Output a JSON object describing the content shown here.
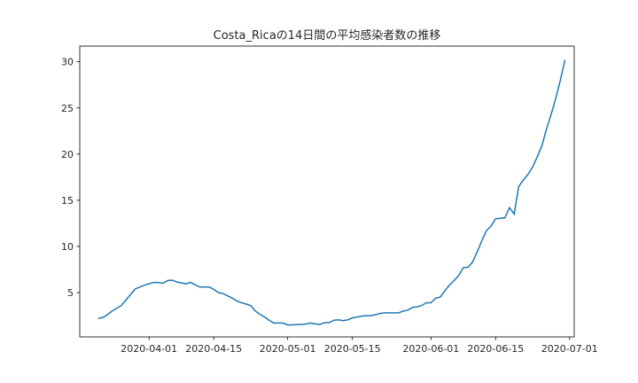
{
  "chart_data": {
    "type": "line",
    "title": "Costa_Ricaの14日間の平均感染者数の推移",
    "xlabel": "",
    "ylabel": "",
    "x_ticks": [
      "2020-04-01",
      "2020-04-15",
      "2020-05-01",
      "2020-05-15",
      "2020-06-01",
      "2020-06-15",
      "2020-07-01"
    ],
    "y_ticks": [
      5,
      10,
      15,
      20,
      25,
      30
    ],
    "xlim": [
      "2020-03-17",
      "2020-07-02"
    ],
    "ylim": [
      0.2,
      31.7
    ],
    "grid": false,
    "series": [
      {
        "color": "#1f77b4",
        "x": [
          "2020-03-21",
          "2020-03-22",
          "2020-03-23",
          "2020-03-24",
          "2020-03-25",
          "2020-03-26",
          "2020-03-27",
          "2020-03-28",
          "2020-03-29",
          "2020-03-30",
          "2020-03-31",
          "2020-04-01",
          "2020-04-02",
          "2020-04-03",
          "2020-04-04",
          "2020-04-05",
          "2020-04-06",
          "2020-04-07",
          "2020-04-08",
          "2020-04-09",
          "2020-04-10",
          "2020-04-11",
          "2020-04-12",
          "2020-04-13",
          "2020-04-14",
          "2020-04-15",
          "2020-04-16",
          "2020-04-17",
          "2020-04-18",
          "2020-04-19",
          "2020-04-20",
          "2020-04-21",
          "2020-04-22",
          "2020-04-23",
          "2020-04-24",
          "2020-04-25",
          "2020-04-26",
          "2020-04-27",
          "2020-04-28",
          "2020-04-29",
          "2020-04-30",
          "2020-05-01",
          "2020-05-02",
          "2020-05-03",
          "2020-05-04",
          "2020-05-05",
          "2020-05-06",
          "2020-05-07",
          "2020-05-08",
          "2020-05-09",
          "2020-05-10",
          "2020-05-11",
          "2020-05-12",
          "2020-05-13",
          "2020-05-14",
          "2020-05-15",
          "2020-05-16",
          "2020-05-17",
          "2020-05-18",
          "2020-05-19",
          "2020-05-20",
          "2020-05-21",
          "2020-05-22",
          "2020-05-23",
          "2020-05-24",
          "2020-05-25",
          "2020-05-26",
          "2020-05-27",
          "2020-05-28",
          "2020-05-29",
          "2020-05-30",
          "2020-05-31",
          "2020-06-01",
          "2020-06-02",
          "2020-06-03",
          "2020-06-04",
          "2020-06-05",
          "2020-06-06",
          "2020-06-07",
          "2020-06-08",
          "2020-06-09",
          "2020-06-10",
          "2020-06-11",
          "2020-06-12",
          "2020-06-13",
          "2020-06-14",
          "2020-06-15",
          "2020-06-16",
          "2020-06-17",
          "2020-06-18",
          "2020-06-19",
          "2020-06-20",
          "2020-06-21",
          "2020-06-22",
          "2020-06-23",
          "2020-06-24",
          "2020-06-25",
          "2020-06-26",
          "2020-06-27",
          "2020-06-28",
          "2020-06-29",
          "2020-06-30"
        ],
        "values": [
          2.2,
          2.3,
          2.6,
          3.0,
          3.3,
          3.6,
          4.2,
          4.8,
          5.4,
          5.6,
          5.8,
          5.95,
          6.1,
          6.1,
          6.0,
          6.3,
          6.35,
          6.15,
          6.05,
          5.95,
          6.1,
          5.85,
          5.6,
          5.6,
          5.6,
          5.35,
          5.0,
          4.9,
          4.65,
          4.4,
          4.1,
          3.9,
          3.75,
          3.6,
          3.0,
          2.65,
          2.35,
          2.0,
          1.7,
          1.7,
          1.7,
          1.5,
          1.5,
          1.55,
          1.55,
          1.6,
          1.7,
          1.6,
          1.55,
          1.75,
          1.75,
          2.0,
          2.05,
          1.95,
          2.05,
          2.25,
          2.35,
          2.45,
          2.5,
          2.5,
          2.6,
          2.75,
          2.8,
          2.8,
          2.8,
          2.8,
          3.0,
          3.1,
          3.4,
          3.45,
          3.6,
          3.9,
          3.9,
          4.4,
          4.5,
          5.2,
          5.8,
          6.3,
          6.85,
          7.7,
          7.75,
          8.3,
          9.4,
          10.6,
          11.7,
          12.2,
          13.0,
          13.05,
          13.1,
          14.2,
          13.5,
          16.5,
          17.2,
          17.8,
          18.6,
          19.7,
          20.9,
          22.7,
          24.3,
          26.0,
          28.0,
          30.2
        ]
      }
    ]
  }
}
